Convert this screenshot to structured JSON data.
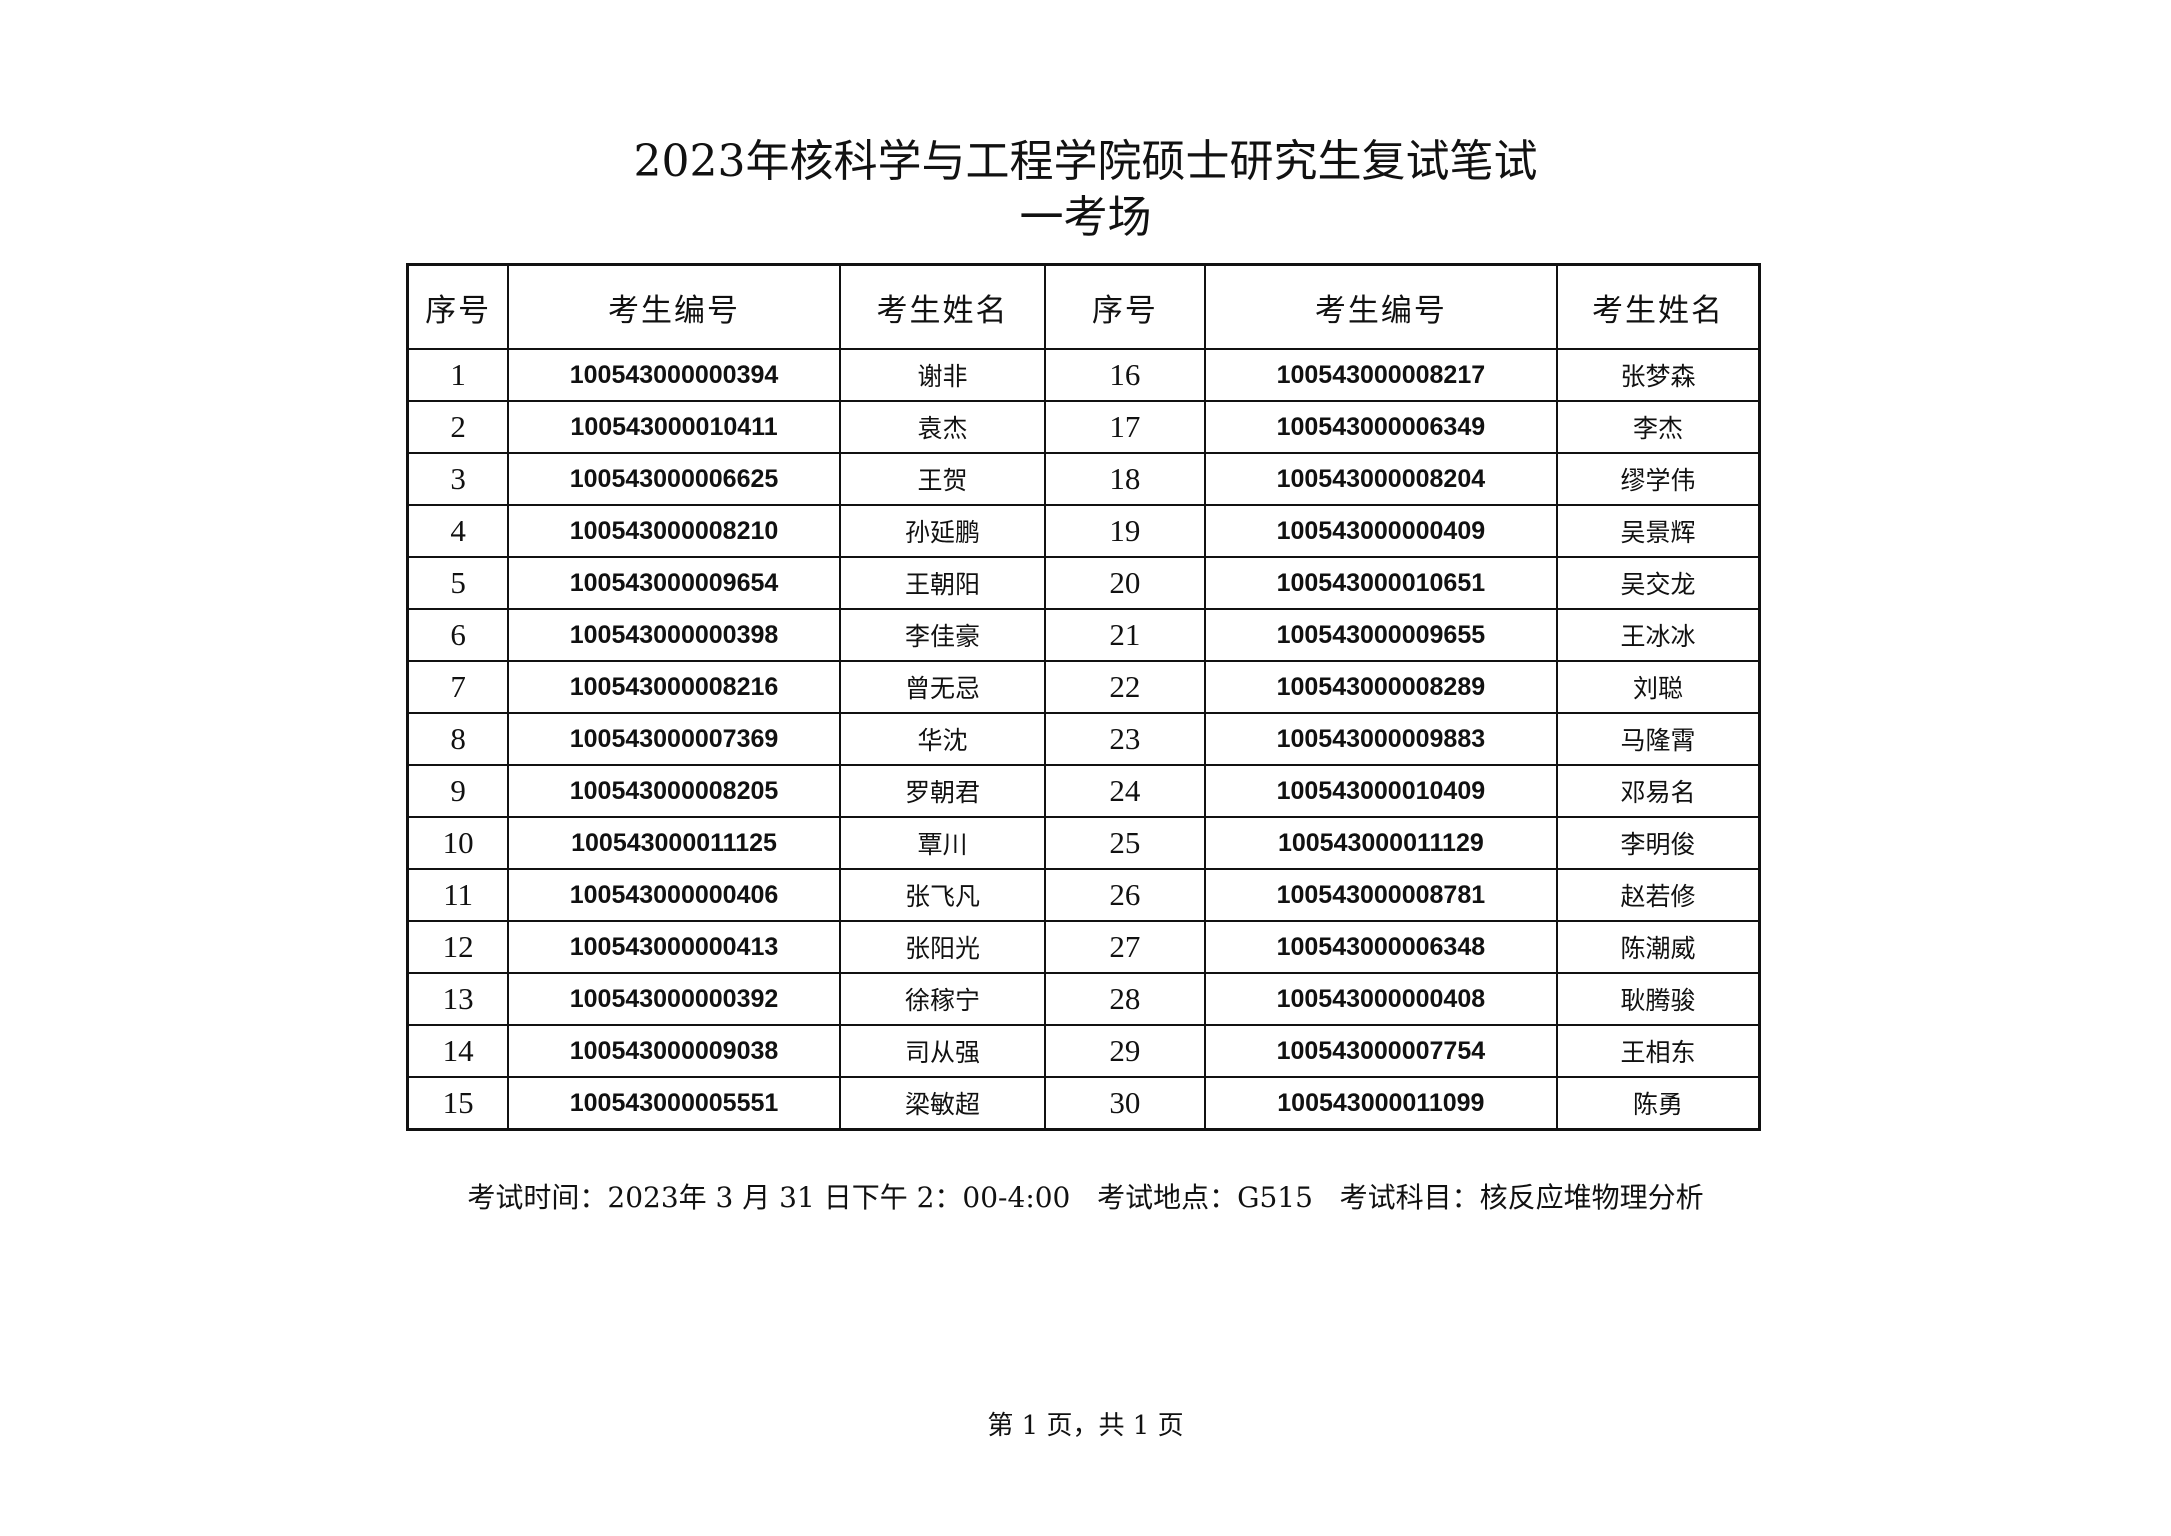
{
  "title": "2023年核科学与工程学院硕士研究生复试笔试",
  "subtitle": "一考场",
  "table": {
    "headers": [
      "序号",
      "考生编号",
      "考生姓名",
      "序号",
      "考生编号",
      "考生姓名"
    ],
    "rows": [
      [
        [
          "1",
          "100543000000394",
          "谢非"
        ],
        [
          "16",
          "100543000008217",
          "张梦森"
        ]
      ],
      [
        [
          "2",
          "100543000010411",
          "袁杰"
        ],
        [
          "17",
          "100543000006349",
          "李杰"
        ]
      ],
      [
        [
          "3",
          "100543000006625",
          "王贺"
        ],
        [
          "18",
          "100543000008204",
          "缪学伟"
        ]
      ],
      [
        [
          "4",
          "100543000008210",
          "孙延鹏"
        ],
        [
          "19",
          "100543000000409",
          "吴景辉"
        ]
      ],
      [
        [
          "5",
          "100543000009654",
          "王朝阳"
        ],
        [
          "20",
          "100543000010651",
          "吴交龙"
        ]
      ],
      [
        [
          "6",
          "100543000000398",
          "李佳豪"
        ],
        [
          "21",
          "100543000009655",
          "王冰冰"
        ]
      ],
      [
        [
          "7",
          "100543000008216",
          "曾无忌"
        ],
        [
          "22",
          "100543000008289",
          "刘聪"
        ]
      ],
      [
        [
          "8",
          "100543000007369",
          "华沈"
        ],
        [
          "23",
          "100543000009883",
          "马隆霄"
        ]
      ],
      [
        [
          "9",
          "100543000008205",
          "罗朝君"
        ],
        [
          "24",
          "100543000010409",
          "邓易名"
        ]
      ],
      [
        [
          "10",
          "100543000011125",
          "覃川"
        ],
        [
          "25",
          "100543000011129",
          "李明俊"
        ]
      ],
      [
        [
          "11",
          "100543000000406",
          "张飞凡"
        ],
        [
          "26",
          "100543000008781",
          "赵若修"
        ]
      ],
      [
        [
          "12",
          "100543000000413",
          "张阳光"
        ],
        [
          "27",
          "100543000006348",
          "陈潮威"
        ]
      ],
      [
        [
          "13",
          "100543000000392",
          "徐稼宁"
        ],
        [
          "28",
          "100543000000408",
          "耿腾骏"
        ]
      ],
      [
        [
          "14",
          "100543000009038",
          "司从强"
        ],
        [
          "29",
          "100543000007754",
          "王相东"
        ]
      ],
      [
        [
          "15",
          "100543000005551",
          "梁敏超"
        ],
        [
          "30",
          "100543000011099",
          "陈勇"
        ]
      ]
    ]
  },
  "footer": "考试时间：2023年 3 月 31 日下午 2：00-4:00   考试地点：G515   考试科目：核反应堆物理分析",
  "page_number": "第 1 页，共 1 页"
}
